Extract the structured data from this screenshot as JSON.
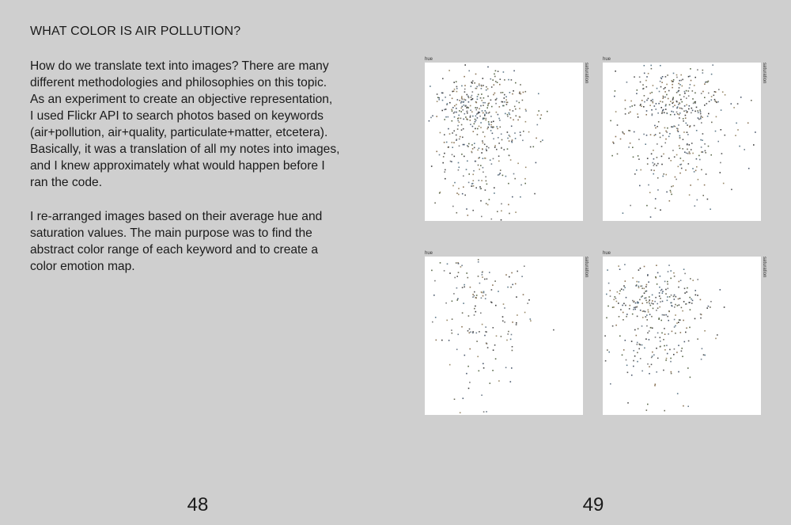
{
  "left_page": {
    "heading": "WHAT COLOR IS AIR POLLUTION?",
    "paragraph1_lines": [
      "How do we translate text into images? There are many",
      "different methodologies and philosophies on this topic.",
      "As an experiment to create an objective representation,",
      "I used Flickr API to search photos based on keywords",
      "(air+pollution, air+quality, particulate+matter, etcetera).",
      "Basically, it was a translation of all my notes into images,",
      "and I knew approximately what would happen before I",
      "ran the code."
    ],
    "paragraph2_lines": [
      "I re-arranged images based on their average hue and",
      "saturation values. The main purpose was to find the",
      "abstract color range of each keyword and to create a",
      "color emotion map."
    ],
    "page_number": "48"
  },
  "right_page": {
    "page_number": "49",
    "plots": [
      {
        "hue_label": "hue",
        "saturation_label": "saturation"
      },
      {
        "hue_label": "hue",
        "saturation_label": "saturation"
      },
      {
        "hue_label": "hue",
        "saturation_label": "saturation"
      },
      {
        "hue_label": "hue",
        "saturation_label": "saturation"
      }
    ]
  },
  "colors": {
    "page_background": "#cfcfcf",
    "plot_background": "#ffffff",
    "text": "#1a1a1a",
    "point_palette": [
      "#555555",
      "#6b6b5a",
      "#5a6a4a",
      "#7a7a7a",
      "#4d5a6e",
      "#8a7355",
      "#6e7d8c",
      "#3f3f3f",
      "#9a8a6a",
      "#5e7a8a"
    ]
  }
}
